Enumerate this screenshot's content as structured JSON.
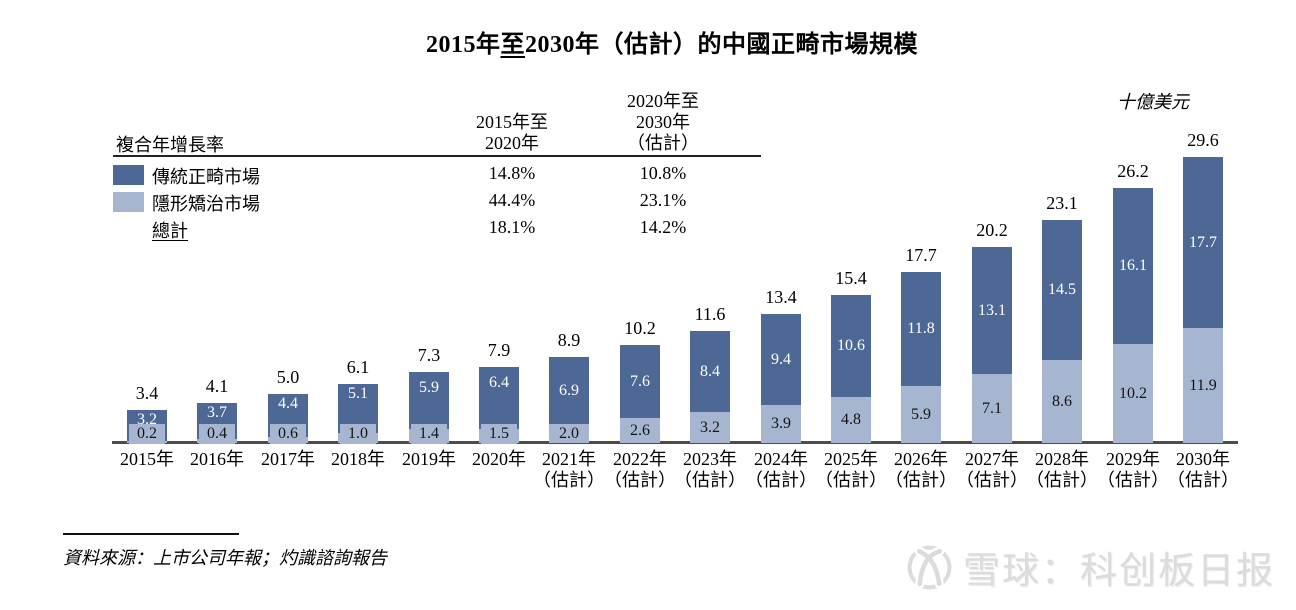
{
  "title": {
    "pre": "2015年",
    "underlined": "至",
    "post": "2030年（估計）的中國正畸市場規模"
  },
  "unit_label": "十億美元",
  "cagr_table": {
    "header_label": "複合年增長率",
    "col1_header_lines": [
      "2015年至",
      "2020年"
    ],
    "col2_header_lines": [
      "2020年至",
      "2030年",
      "（估計）"
    ],
    "rows": [
      {
        "swatch": "dark",
        "label": "傳統正畸市場",
        "underline": false,
        "cagr_2015_2020": "14.8%",
        "cagr_2020_2030": "10.8%"
      },
      {
        "swatch": "light",
        "label": "隱形矯治市場",
        "underline": false,
        "cagr_2015_2020": "44.4%",
        "cagr_2020_2030": "23.1%"
      },
      {
        "swatch": "none",
        "label": "總計",
        "underline": true,
        "cagr_2015_2020": "18.1%",
        "cagr_2020_2030": "14.2%"
      }
    ]
  },
  "chart_data": {
    "type": "bar",
    "stacked": true,
    "title": "2015年至2030年（估計）的中國正畸市場規模",
    "ylabel": "十億美元",
    "ylim": [
      0,
      30
    ],
    "grid": false,
    "value_labels": true,
    "legend_position": "top-left-table",
    "categories": [
      {
        "label": "2015年",
        "sub": ""
      },
      {
        "label": "2016年",
        "sub": ""
      },
      {
        "label": "2017年",
        "sub": ""
      },
      {
        "label": "2018年",
        "sub": ""
      },
      {
        "label": "2019年",
        "sub": ""
      },
      {
        "label": "2020年",
        "sub": ""
      },
      {
        "label": "2021年",
        "sub": "（估計）"
      },
      {
        "label": "2022年",
        "sub": "（估計）"
      },
      {
        "label": "2023年",
        "sub": "（估計）"
      },
      {
        "label": "2024年",
        "sub": "（估計）"
      },
      {
        "label": "2025年",
        "sub": "（估計）"
      },
      {
        "label": "2026年",
        "sub": "（估計）"
      },
      {
        "label": "2027年",
        "sub": "（估計）"
      },
      {
        "label": "2028年",
        "sub": "（估計）"
      },
      {
        "label": "2029年",
        "sub": "（估計）"
      },
      {
        "label": "2030年",
        "sub": "（估計）"
      }
    ],
    "series": [
      {
        "name": "傳統正畸市場",
        "color": "#4d6894",
        "stack_position": "top",
        "values": [
          3.2,
          3.7,
          4.4,
          5.1,
          5.9,
          6.4,
          6.9,
          7.6,
          8.4,
          9.4,
          10.6,
          11.8,
          13.1,
          14.5,
          16.1,
          17.7
        ]
      },
      {
        "name": "隱形矯治市場",
        "color": "#a6b5d0",
        "stack_position": "bottom",
        "values": [
          0.2,
          0.4,
          0.6,
          1.0,
          1.4,
          1.5,
          2.0,
          2.6,
          3.2,
          3.9,
          4.8,
          5.9,
          7.1,
          8.6,
          10.2,
          11.9
        ]
      }
    ],
    "totals": [
      3.4,
      4.1,
      5.0,
      6.1,
      7.3,
      7.9,
      8.9,
      10.2,
      11.6,
      13.4,
      15.4,
      17.7,
      20.2,
      23.1,
      26.2,
      29.6
    ]
  },
  "source_note": "資料來源：上市公司年報；灼識諮詢報告",
  "watermark": {
    "icon": "xueqiu-snowball-logo",
    "text": "雪球：科创板日报"
  },
  "colors": {
    "bar_dark": "#4d6894",
    "bar_light": "#a6b5d0",
    "axis_line": "#4d4d4d",
    "rule": "#222222",
    "watermark_gray": "#dcdcdc"
  }
}
